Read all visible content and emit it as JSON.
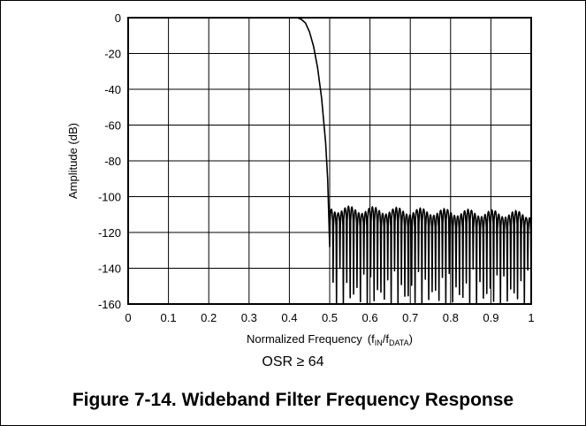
{
  "chart_data": {
    "type": "line",
    "title": "",
    "xlabel": "Normalized Frequency",
    "xlabel_note_prefix": "(f",
    "xlabel_note_sub1": "IN",
    "xlabel_note_mid": "/f",
    "xlabel_note_sub2": "DATA",
    "xlabel_note_suffix": ")",
    "ylabel": "Amplitude (dB)",
    "xlim": [
      0,
      1
    ],
    "ylim": [
      -160,
      0
    ],
    "x_ticks": [
      "0",
      "0.1",
      "0.2",
      "0.3",
      "0.4",
      "0.5",
      "0.6",
      "0.7",
      "0.8",
      "0.9",
      "1"
    ],
    "y_ticks": [
      "0",
      "-20",
      "-40",
      "-60",
      "-80",
      "-100",
      "-120",
      "-140",
      "-160"
    ],
    "grid": true,
    "line_color": "#000000",
    "series": [
      {
        "passband_edge": 0.42,
        "stopband_start": 0.5,
        "transition_x": [
          0.0,
          0.42,
          0.43,
          0.44,
          0.45,
          0.46,
          0.47,
          0.48,
          0.49,
          0.495,
          0.5
        ],
        "transition_y": [
          0,
          0,
          -1,
          -3,
          -8,
          -16,
          -28,
          -45,
          -70,
          -90,
          -128
        ],
        "stopband_lobe_peaks_db": [
          -107,
          -110
        ],
        "stopband_null_floor_db": -160,
        "stopband_lobe_count": 59
      }
    ]
  },
  "subtitle": "OSR ≥ 64",
  "caption": "Figure 7-14. Wideband Filter Frequency Response"
}
